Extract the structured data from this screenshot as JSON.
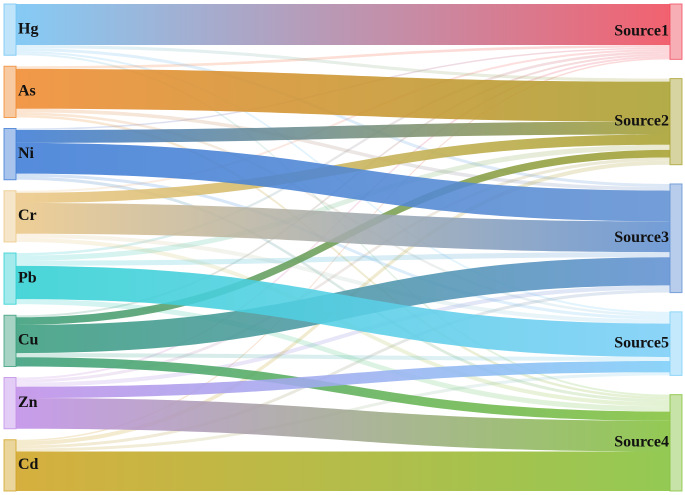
{
  "chart_data": {
    "type": "sankey",
    "sources": [
      {
        "name": "Hg",
        "color": "#74c4f4"
      },
      {
        "name": "As",
        "color": "#f08a30"
      },
      {
        "name": "Ni",
        "color": "#3d7cd6"
      },
      {
        "name": "Cr",
        "color": "#ecc888"
      },
      {
        "name": "Pb",
        "color": "#30d0d2"
      },
      {
        "name": "Cu",
        "color": "#3a9e7c"
      },
      {
        "name": "Zn",
        "color": "#c08ee8"
      },
      {
        "name": "Cd",
        "color": "#d0a424"
      }
    ],
    "targets": [
      {
        "name": "Source1",
        "color": "#f04c5c"
      },
      {
        "name": "Source2",
        "color": "#a8a030"
      },
      {
        "name": "Source3",
        "color": "#6090d2"
      },
      {
        "name": "Source5",
        "color": "#7ccef8"
      },
      {
        "name": "Source4",
        "color": "#84c23c"
      }
    ],
    "flows": [
      [
        80,
        6,
        6,
        4,
        4
      ],
      [
        5,
        78,
        7,
        5,
        5
      ],
      [
        3,
        25,
        60,
        6,
        6
      ],
      [
        4,
        20,
        60,
        8,
        8
      ],
      [
        5,
        10,
        10,
        65,
        10
      ],
      [
        4,
        15,
        55,
        8,
        18
      ],
      [
        4,
        6,
        8,
        22,
        60
      ],
      [
        3,
        8,
        6,
        6,
        77
      ]
    ]
  }
}
